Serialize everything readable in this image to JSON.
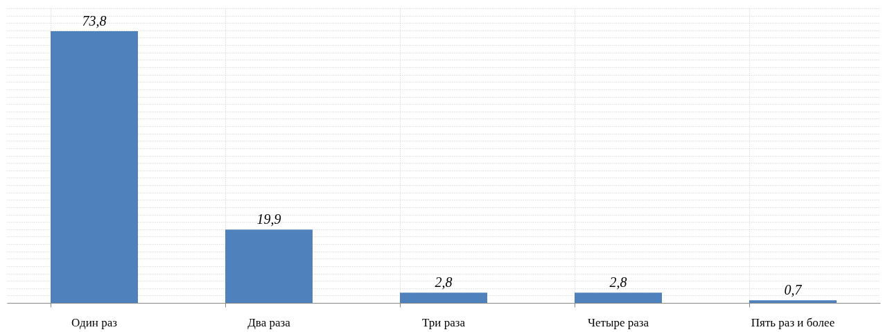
{
  "chart_data": {
    "type": "bar",
    "categories": [
      "Один раз",
      "Два раза",
      "Три раза",
      "Четыре раза",
      "Пять раз и более"
    ],
    "values": [
      73.8,
      19.9,
      2.8,
      2.8,
      0.7
    ],
    "value_labels": [
      "73,8",
      "19,9",
      "2,8",
      "2,8",
      "0,7"
    ],
    "color": "#4f81bd",
    "grid": true
  }
}
